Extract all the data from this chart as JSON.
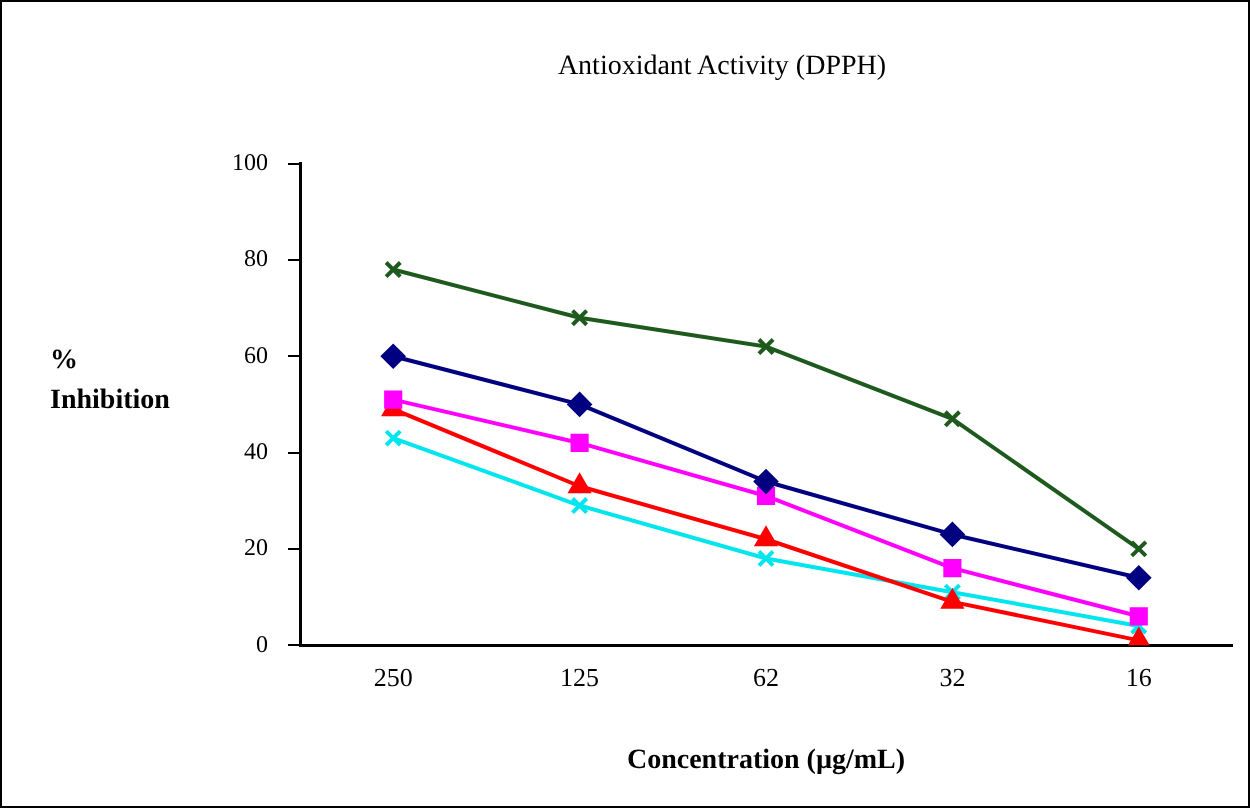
{
  "chart_data": {
    "type": "line",
    "title": "Antioxidant Activity (DPPH)",
    "xlabel": "Concentration (µg/mL)",
    "ylabel": "% Inhibition",
    "categories": [
      "250",
      "125",
      "62",
      "32",
      "16"
    ],
    "series": [
      {
        "color": "#1e5a1e",
        "marker": "cross",
        "values": [
          78,
          68,
          62,
          47,
          20
        ]
      },
      {
        "color": "#000080",
        "marker": "diamond",
        "values": [
          60,
          50,
          34,
          23,
          14
        ]
      },
      {
        "color": "#ff00ff",
        "marker": "square",
        "values": [
          51,
          42,
          31,
          16,
          6
        ]
      },
      {
        "color": "#ff0000",
        "marker": "triangle",
        "values": [
          49,
          33,
          22,
          9,
          1
        ]
      },
      {
        "color": "#00e5ee",
        "marker": "cross",
        "values": [
          43,
          29,
          18,
          11,
          4
        ]
      }
    ],
    "ylim": [
      0,
      100
    ],
    "yticks": [
      0,
      20,
      40,
      60,
      80,
      100
    ],
    "grid": false,
    "legend": false
  }
}
